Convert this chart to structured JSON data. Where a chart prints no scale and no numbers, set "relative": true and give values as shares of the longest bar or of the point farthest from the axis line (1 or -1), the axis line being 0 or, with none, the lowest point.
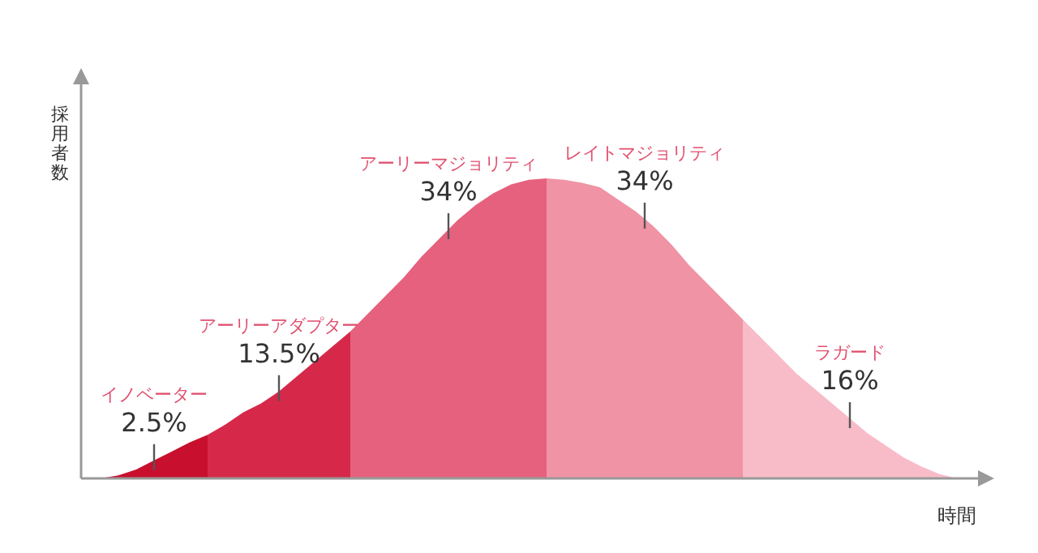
{
  "chart_data": {
    "type": "area",
    "relative": true,
    "xlabel": "時間",
    "ylabel": "採用者数",
    "categories": [
      null,
      null,
      null,
      null,
      null,
      null,
      null,
      null,
      null,
      null,
      null,
      null,
      null,
      null,
      null,
      null,
      null,
      null,
      null,
      null,
      null,
      null,
      null,
      null,
      null,
      null,
      null,
      null,
      null,
      null,
      null,
      null,
      null,
      null,
      null,
      null,
      null,
      null,
      null,
      null,
      null,
      null,
      null,
      null,
      null,
      null,
      null,
      null,
      null
    ],
    "series": [
      {
        "name": "イノベーター",
        "color": "#c8102e",
        "values": [
          0,
          0.01,
          0.03,
          0.06,
          0.09,
          0.12,
          0.145,
          null,
          null,
          null,
          null,
          null,
          null,
          null,
          null,
          null,
          null,
          null,
          null,
          null,
          null,
          null,
          null,
          null,
          null,
          null,
          null,
          null,
          null,
          null,
          null,
          null,
          null,
          null,
          null,
          null,
          null,
          null,
          null,
          null,
          null,
          null,
          null,
          null,
          null,
          null,
          null,
          null,
          null
        ]
      },
      {
        "name": "アーリーアダプター",
        "color": "#d6294a",
        "values": [
          null,
          null,
          null,
          null,
          null,
          null,
          0.145,
          0.18,
          0.22,
          0.25,
          0.29,
          0.34,
          0.39,
          0.44,
          0.49,
          null,
          null,
          null,
          null,
          null,
          null,
          null,
          null,
          null,
          null,
          null,
          null,
          null,
          null,
          null,
          null,
          null,
          null,
          null,
          null,
          null,
          null,
          null,
          null,
          null,
          null,
          null,
          null,
          null,
          null,
          null,
          null,
          null,
          null
        ]
      },
      {
        "name": "アーリーマジョリティ",
        "color": "#e6617d",
        "values": [
          null,
          null,
          null,
          null,
          null,
          null,
          null,
          null,
          null,
          null,
          null,
          null,
          null,
          null,
          0.49,
          0.55,
          0.61,
          0.67,
          0.74,
          0.8,
          0.86,
          0.91,
          0.95,
          0.98,
          0.995,
          1,
          null,
          null,
          null,
          null,
          null,
          null,
          null,
          null,
          null,
          null,
          null,
          null,
          null,
          null,
          null,
          null,
          null,
          null,
          null,
          null,
          null,
          null,
          null
        ]
      },
      {
        "name": "レイトマジョリティ",
        "color": "#ef93a5",
        "values": [
          null,
          null,
          null,
          null,
          null,
          null,
          null,
          null,
          null,
          null,
          null,
          null,
          null,
          null,
          null,
          null,
          null,
          null,
          null,
          null,
          null,
          null,
          null,
          null,
          null,
          1,
          0.995,
          0.985,
          0.97,
          0.93,
          0.89,
          0.84,
          0.78,
          0.71,
          0.65,
          0.59,
          0.53,
          null,
          null,
          null,
          null,
          null,
          null,
          null,
          null,
          null,
          null,
          null,
          null
        ]
      },
      {
        "name": "ラガード",
        "color": "#f8bcc8",
        "values": [
          null,
          null,
          null,
          null,
          null,
          null,
          null,
          null,
          null,
          null,
          null,
          null,
          null,
          null,
          null,
          null,
          null,
          null,
          null,
          null,
          null,
          null,
          null,
          null,
          null,
          null,
          null,
          null,
          null,
          null,
          null,
          null,
          null,
          null,
          null,
          null,
          0.53,
          0.47,
          0.41,
          0.35,
          0.3,
          0.25,
          0.2,
          0.15,
          0.11,
          0.07,
          0.04,
          0.015,
          0
        ]
      }
    ],
    "annotations": [
      "2.5%",
      "13.5%",
      "34%",
      "34%",
      "16%"
    ]
  }
}
